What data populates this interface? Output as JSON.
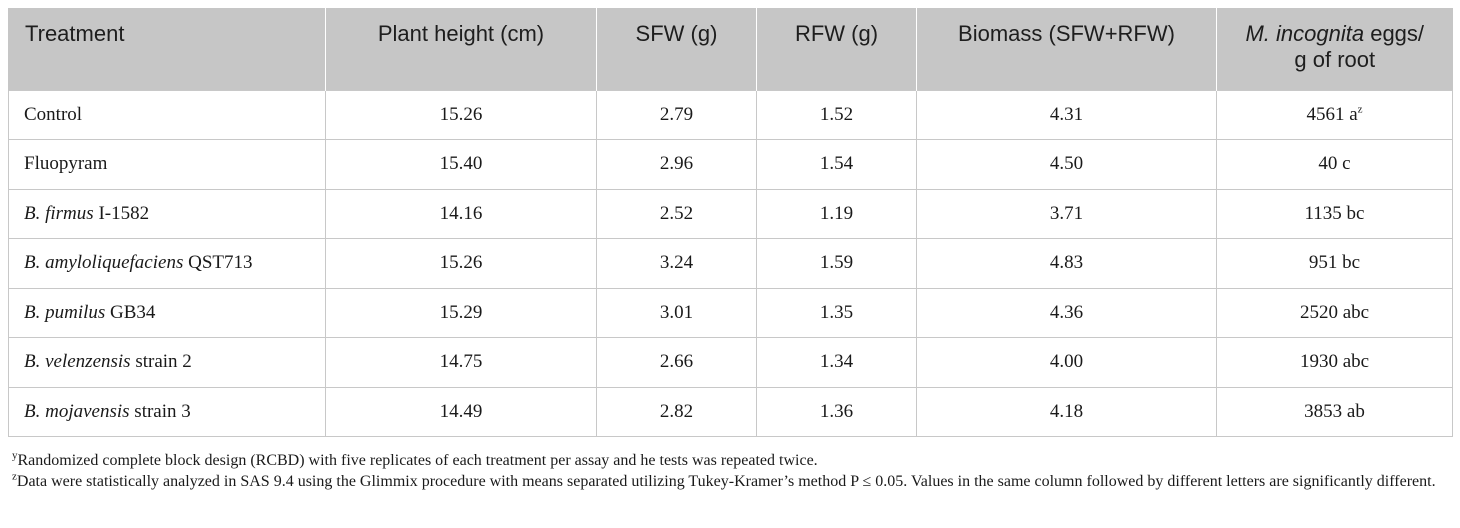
{
  "table": {
    "headers": {
      "treatment": "Treatment",
      "plant_height": "Plant height (cm)",
      "sfw": "SFW (g)",
      "rfw": "RFW (g)",
      "biomass": "Biomass (SFW+RFW)",
      "eggs_italic": "M. incognita",
      "eggs_rest1": " eggs/",
      "eggs_rest2": "g of root"
    },
    "rows": [
      {
        "name_italic": "",
        "name_rest": "Control",
        "plant_height": "15.26",
        "sfw": "2.79",
        "rfw": "1.52",
        "biomass": "4.31",
        "eggs": "4561 a",
        "eggs_sup": "z"
      },
      {
        "name_italic": "",
        "name_rest": "Fluopyram",
        "plant_height": "15.40",
        "sfw": "2.96",
        "rfw": "1.54",
        "biomass": "4.50",
        "eggs": "40 c",
        "eggs_sup": ""
      },
      {
        "name_italic": "B. firmus",
        "name_rest": " I-1582",
        "plant_height": "14.16",
        "sfw": "2.52",
        "rfw": "1.19",
        "biomass": "3.71",
        "eggs": "1135 bc",
        "eggs_sup": ""
      },
      {
        "name_italic": "B. amyloliquefaciens",
        "name_rest": " QST713",
        "plant_height": "15.26",
        "sfw": "3.24",
        "rfw": "1.59",
        "biomass": "4.83",
        "eggs": "951 bc",
        "eggs_sup": ""
      },
      {
        "name_italic": "B. pumilus",
        "name_rest": " GB34",
        "plant_height": "15.29",
        "sfw": "3.01",
        "rfw": "1.35",
        "biomass": "4.36",
        "eggs": "2520 abc",
        "eggs_sup": ""
      },
      {
        "name_italic": "B. velenzensis",
        "name_rest": " strain 2",
        "plant_height": "14.75",
        "sfw": "2.66",
        "rfw": "1.34",
        "biomass": "4.00",
        "eggs": "1930 abc",
        "eggs_sup": ""
      },
      {
        "name_italic": "B. mojavensis",
        "name_rest": " strain 3",
        "plant_height": "14.49",
        "sfw": "2.82",
        "rfw": "1.36",
        "biomass": "4.18",
        "eggs": "3853 ab",
        "eggs_sup": ""
      }
    ]
  },
  "footnotes": [
    {
      "mark": "y",
      "text": "Randomized complete block design (RCBD) with five replicates of each treatment per assay and he tests was repeated twice."
    },
    {
      "mark": "z",
      "text": "Data were statistically analyzed in SAS 9.4 using the Glimmix procedure with means separated utilizing Tukey-Kramer’s method P ≤ 0.05. Values in the same column followed by different letters are significantly different."
    }
  ]
}
